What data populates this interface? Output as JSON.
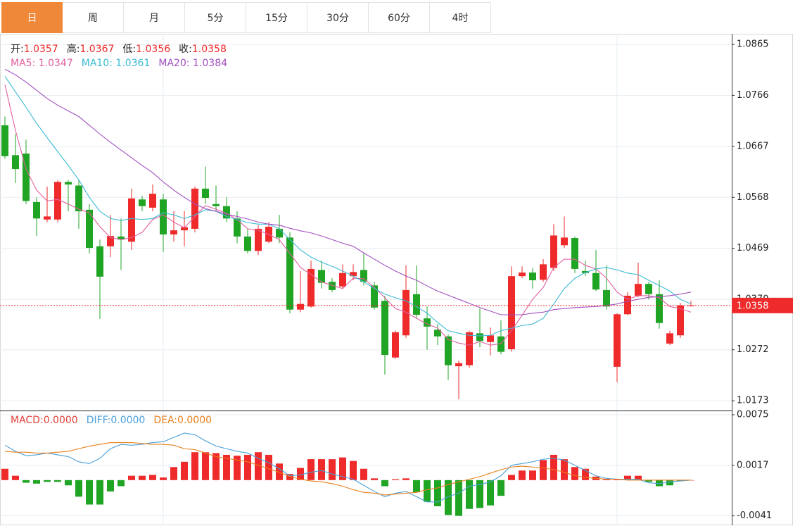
{
  "tabs": {
    "items": [
      "日",
      "周",
      "月",
      "5分",
      "15分",
      "30分",
      "60分",
      "4时"
    ],
    "active": 0
  },
  "chart_data": [
    {
      "type": "candlestick",
      "header": [
        {
          "name": "开:",
          "value": 1.0357
        },
        {
          "name": "高:",
          "value": 1.0367
        },
        {
          "name": "低:",
          "value": 1.0356
        },
        {
          "name": "收:",
          "value": 1.0358
        }
      ],
      "up_color": "#ee2a2a",
      "down_color": "#1fa424",
      "open": [
        1.0708,
        1.065,
        1.0653,
        1.0559,
        1.0525,
        1.0525,
        1.0598,
        1.0591,
        1.0544,
        1.0473,
        1.0473,
        1.0492,
        1.0482,
        1.0564,
        1.0548,
        1.0564,
        1.0496,
        1.0504,
        1.0507,
        1.0585,
        1.0555,
        1.0551,
        1.0527,
        1.0492,
        1.0464,
        1.0482,
        1.0507,
        1.049,
        1.035,
        1.0356,
        1.0427,
        1.0404,
        1.0395,
        1.0415,
        1.0427,
        1.0397,
        1.0367,
        1.0257,
        1.03,
        1.038,
        1.0333,
        1.0311,
        1.0298,
        1.024,
        1.0242,
        1.0304,
        1.0287,
        1.0298,
        1.0273,
        1.0415,
        1.0422,
        1.0408,
        1.0431,
        1.0475,
        1.0489,
        1.0425,
        1.0421,
        1.0388,
        1.0239,
        1.0341,
        1.0377,
        1.04,
        1.038,
        1.0284,
        1.03,
        1.0357
      ],
      "high": [
        1.0725,
        1.0691,
        1.068,
        1.0568,
        1.0589,
        1.0601,
        1.0602,
        1.0602,
        1.0555,
        1.0486,
        1.0534,
        1.0527,
        1.0585,
        1.0571,
        1.0593,
        1.0575,
        1.0541,
        1.0541,
        1.0589,
        1.0628,
        1.0591,
        1.0568,
        1.0541,
        1.0507,
        1.0514,
        1.052,
        1.0534,
        1.05,
        1.0425,
        1.0445,
        1.0445,
        1.0411,
        1.0438,
        1.0438,
        1.0459,
        1.0404,
        1.0377,
        1.0309,
        1.0436,
        1.0436,
        1.0356,
        1.0322,
        1.0302,
        1.0251,
        1.0309,
        1.0352,
        1.0315,
        1.0329,
        1.0434,
        1.0434,
        1.0431,
        1.0448,
        1.0516,
        1.0531,
        1.0492,
        1.0445,
        1.0466,
        1.0436,
        1.0343,
        1.0384,
        1.0441,
        1.0404,
        1.0407,
        1.0309,
        1.0363,
        1.0367
      ],
      "low": [
        1.0643,
        1.0596,
        1.0555,
        1.0493,
        1.052,
        1.052,
        1.0541,
        1.0507,
        1.0459,
        1.0332,
        1.0452,
        1.0427,
        1.0466,
        1.0541,
        1.0541,
        1.0462,
        1.0482,
        1.0473,
        1.05,
        1.0555,
        1.0541,
        1.052,
        1.0479,
        1.0459,
        1.0456,
        1.0479,
        1.0479,
        1.0343,
        1.0345,
        1.0354,
        1.0391,
        1.0384,
        1.0391,
        1.0407,
        1.0397,
        1.035,
        1.0224,
        1.0254,
        1.0295,
        1.0333,
        1.0272,
        1.0281,
        1.0213,
        1.0176,
        1.0237,
        1.0277,
        1.0261,
        1.0263,
        1.0268,
        1.0411,
        1.0391,
        1.0404,
        1.0425,
        1.047,
        1.0421,
        1.0415,
        1.0386,
        1.035,
        1.0209,
        1.0339,
        1.0374,
        1.037,
        1.0313,
        1.0281,
        1.0295,
        1.0356
      ],
      "close": [
        1.0648,
        1.0623,
        1.0561,
        1.0527,
        1.0531,
        1.0598,
        1.0593,
        1.0541,
        1.047,
        1.0414,
        1.0493,
        1.0486,
        1.0566,
        1.0551,
        1.0575,
        1.0496,
        1.0504,
        1.051,
        1.0585,
        1.0567,
        1.0551,
        1.0527,
        1.0492,
        1.0464,
        1.0507,
        1.0511,
        1.049,
        1.035,
        1.0361,
        1.0429,
        1.0402,
        1.0388,
        1.0421,
        1.0423,
        1.0404,
        1.0354,
        1.0262,
        1.0306,
        1.0388,
        1.034,
        1.0317,
        1.0298,
        1.0242,
        1.0246,
        1.0306,
        1.0289,
        1.03,
        1.0268,
        1.0415,
        1.0422,
        1.0407,
        1.0438,
        1.0494,
        1.049,
        1.0429,
        1.0421,
        1.0389,
        1.0356,
        1.0341,
        1.0377,
        1.04,
        1.038,
        1.0324,
        1.0304,
        1.0358,
        1.0358
      ],
      "series": [
        {
          "name": "MA5:",
          "current": 1.0347,
          "color": "#e2609f",
          "values": [
            1.0787,
            1.0698,
            1.0623,
            1.0582,
            1.0561,
            1.0564,
            1.0555,
            1.0545,
            1.0538,
            1.0511,
            1.049,
            1.0486,
            1.049,
            1.05,
            1.0525,
            1.0534,
            1.052,
            1.0509,
            1.0531,
            1.0552,
            1.0545,
            1.0537,
            1.0525,
            1.0507,
            1.0504,
            1.0496,
            1.0486,
            1.0459,
            1.0432,
            1.0418,
            1.0404,
            1.0397,
            1.0391,
            1.0411,
            1.041,
            1.0393,
            1.0373,
            1.0352,
            1.0345,
            1.0333,
            1.0322,
            1.0314,
            1.0292,
            1.0285,
            1.0281,
            1.0288,
            1.0281,
            1.0284,
            1.0309,
            1.0339,
            1.037,
            1.0393,
            1.0432,
            1.0448,
            1.0448,
            1.0436,
            1.0429,
            1.0411,
            1.0384,
            1.037,
            1.0377,
            1.0377,
            1.0373,
            1.0356,
            1.0352,
            1.0345
          ]
        },
        {
          "name": "MA10:",
          "current": 1.0361,
          "color": "#3bbbd6",
          "values": [
            1.0803,
            1.0773,
            1.0743,
            1.0712,
            1.0684,
            1.0657,
            1.063,
            1.0602,
            1.0568,
            1.0541,
            1.0527,
            1.0523,
            1.0527,
            1.0525,
            1.0527,
            1.0538,
            1.0534,
            1.0527,
            1.0534,
            1.0544,
            1.0541,
            1.0531,
            1.0525,
            1.0519,
            1.0516,
            1.0516,
            1.0507,
            1.0486,
            1.0466,
            1.0452,
            1.0442,
            1.0434,
            1.0425,
            1.0415,
            1.0404,
            1.0391,
            1.038,
            1.0373,
            1.0367,
            1.0356,
            1.0343,
            1.0325,
            1.0309,
            1.0304,
            1.03,
            1.0299,
            1.03,
            1.0309,
            1.0314,
            1.0319,
            1.0322,
            1.0333,
            1.0361,
            1.0391,
            1.0411,
            1.0422,
            1.0429,
            1.0432,
            1.0427,
            1.0421,
            1.0418,
            1.0407,
            1.0397,
            1.0386,
            1.037,
            1.0361
          ]
        },
        {
          "name": "MA20:",
          "current": 1.0384,
          "color": "#a24fc0",
          "values": [
            1.0817,
            1.0806,
            1.0792,
            1.0776,
            1.076,
            1.0747,
            1.0736,
            1.0725,
            1.0708,
            1.0691,
            1.0675,
            1.066,
            1.0645,
            1.063,
            1.0616,
            1.0598,
            1.0582,
            1.0568,
            1.0555,
            1.0546,
            1.0541,
            1.0535,
            1.0531,
            1.0526,
            1.052,
            1.0516,
            1.0514,
            1.0508,
            1.0503,
            1.0499,
            1.0493,
            1.0486,
            1.0479,
            1.0473,
            1.046,
            1.0448,
            1.0436,
            1.0425,
            1.0415,
            1.0407,
            1.0396,
            1.0386,
            1.0378,
            1.037,
            1.0362,
            1.0354,
            1.0347,
            1.034,
            1.034,
            1.034,
            1.0343,
            1.0345,
            1.035,
            1.0352,
            1.0354,
            1.0355,
            1.0356,
            1.0358,
            1.0361,
            1.0366,
            1.037,
            1.0374,
            1.0375,
            1.0377,
            1.038,
            1.0384
          ]
        }
      ],
      "ylim": [
        1.0154,
        1.0883
      ],
      "yticks": [
        1.0173,
        1.0272,
        {
          "value": 1.037,
          "label": "1.0370"
        },
        1.0469,
        1.0568,
        1.0667,
        1.0766,
        1.0865
      ],
      "grid": true,
      "price_marker": 1.0358
    },
    {
      "type": "macd",
      "up_color": "#ee2a2a",
      "down_color": "#1fa424",
      "histogram": {
        "name": "MACD:",
        "current": {
          "value": 0,
          "label": "0.0000"
        },
        "color": "#e0403a",
        "values": [
          0.0013,
          0.0005,
          -0.0003,
          -0.0004,
          -0.0002,
          -0.0002,
          -0.0006,
          -0.0019,
          -0.0028,
          -0.0028,
          -0.0013,
          -0.0007,
          0.0005,
          0.0005,
          0.0006,
          0.0003,
          0.0015,
          0.0021,
          0.0032,
          0.0032,
          0.0031,
          0.0029,
          0.0028,
          0.0029,
          0.0032,
          0.0029,
          0.0019,
          0.0007,
          0.0014,
          0.0024,
          0.0024,
          0.0024,
          0.0026,
          0.0022,
          0.0013,
          0.0002,
          -0.0007,
          0.0001,
          0.0002,
          -0.0014,
          -0.0025,
          -0.003,
          -0.004,
          -0.0041,
          -0.0033,
          -0.0032,
          -0.0029,
          -0.0018,
          0.0006,
          0.0011,
          0.0011,
          0.0023,
          0.0029,
          0.0024,
          0.0015,
          0.0013,
          0.0004,
          0.0001,
          0.0001,
          0.0005,
          0.0005,
          -0.0002,
          -0.0007,
          -0.0006,
          -0.0001,
          0
        ]
      },
      "series": [
        {
          "name": "DIFF:",
          "current": {
            "value": 0,
            "label": "0.0000"
          },
          "color": "#4aa0da",
          "values": [
            0.004,
            0.0033,
            0.0028,
            0.0029,
            0.0031,
            0.0029,
            0.0027,
            0.0021,
            0.0019,
            0.0025,
            0.0036,
            0.0041,
            0.004,
            0.0041,
            0.0043,
            0.0044,
            0.0049,
            0.0054,
            0.0052,
            0.0045,
            0.0039,
            0.0036,
            0.0033,
            0.0031,
            0.0025,
            0.002,
            0.0013,
            0.0005,
            0.0006,
            0.0009,
            0.0011,
            0.0007,
            0.0004,
            0.0001,
            -0.0006,
            -0.0013,
            -0.0019,
            -0.0015,
            -0.0013,
            -0.0019,
            -0.0025,
            -0.0025,
            -0.0019,
            -0.0015,
            -0.0007,
            -0.0005,
            -0.0002,
            0.0005,
            0.0017,
            0.0019,
            0.0021,
            0.0024,
            0.0025,
            0.0023,
            0.0017,
            0.0011,
            0.0005,
            0.0002,
            0.0001,
            0.0001,
            0.0001,
            -0.0003,
            -0.0004,
            -0.0002,
            -0.0001,
            0
          ]
        },
        {
          "name": "DEA:",
          "current": {
            "value": 0,
            "label": "0.0000"
          },
          "color": "#e8801c",
          "values": [
            0.0033,
            0.0032,
            0.0032,
            0.0031,
            0.0031,
            0.0032,
            0.0033,
            0.0036,
            0.0039,
            0.0041,
            0.0043,
            0.0043,
            0.0043,
            0.0042,
            0.0041,
            0.0041,
            0.004,
            0.0036,
            0.0035,
            0.0031,
            0.0027,
            0.0025,
            0.0023,
            0.0021,
            0.0017,
            0.0013,
            0.0009,
            0.0004,
            0.0001,
            -0.0001,
            -0.0002,
            -0.0004,
            -0.0007,
            -0.0011,
            -0.0014,
            -0.0015,
            -0.0017,
            -0.0016,
            -0.0015,
            -0.0014,
            -0.0011,
            -0.0009,
            -0.0005,
            -0.0002,
            0.0001,
            0.0004,
            0.0008,
            0.0012,
            0.0015,
            0.0016,
            0.0015,
            0.0014,
            0.0012,
            0.0009,
            0.0005,
            0.0003,
            0.0002,
            0.0001,
            0.0001,
            0,
            0,
            0,
            0,
            0,
            0,
            0
          ]
        }
      ],
      "ylim": [
        -0.0051,
        0.0079
      ],
      "yticks": [
        -0.0041,
        0.0017,
        0.0075
      ],
      "grid": true
    }
  ]
}
